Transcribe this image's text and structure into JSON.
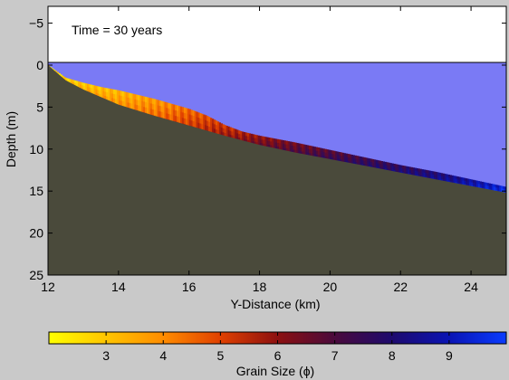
{
  "chart_data": [
    {
      "type": "area",
      "annotation": "Time = 30 years",
      "xlabel": "Y-Distance (km)",
      "ylabel": "Depth (m)",
      "xlim": [
        12,
        25
      ],
      "ylim": [
        -7,
        25
      ],
      "y_reversed": true,
      "xticks": [
        12,
        14,
        16,
        18,
        20,
        22,
        24
      ],
      "yticks": [
        -5,
        0,
        5,
        10,
        15,
        20,
        25
      ],
      "ytick_labels": [
        "−5",
        "0",
        "5",
        "10",
        "15",
        "20",
        "25"
      ],
      "grid": false,
      "water_level": 0,
      "colors": {
        "water": "#7a7af5",
        "bedrock": "#4a4a3b",
        "air": "#ffffff",
        "figure_background": "#c9c9c9"
      },
      "bedrock_surface": {
        "x": [
          12,
          12.5,
          13,
          14,
          15,
          16,
          17,
          18,
          19,
          20,
          21,
          22,
          23,
          24,
          25
        ],
        "depth": [
          0,
          1.8,
          2.9,
          4.7,
          6.0,
          7.2,
          8.4,
          9.5,
          10.4,
          11.2,
          12.0,
          12.8,
          13.6,
          14.4,
          15.2
        ]
      },
      "sediment_top": {
        "x": [
          12,
          12.5,
          13,
          13.5,
          14,
          14.5,
          15,
          15.5,
          16,
          16.5,
          17,
          17.5,
          18,
          19,
          20,
          21,
          22,
          23,
          24,
          25
        ],
        "depth": [
          0,
          1.5,
          2.1,
          2.6,
          3.0,
          3.5,
          4.0,
          4.6,
          5.2,
          6.0,
          7.1,
          7.9,
          8.4,
          9.2,
          10.1,
          11.0,
          11.9,
          12.7,
          13.6,
          14.5
        ]
      },
      "grain_size_along_x": {
        "x": [
          12,
          13,
          14,
          15,
          16,
          17,
          18,
          19,
          20,
          21,
          22,
          23,
          24,
          25
        ],
        "phi": [
          2.6,
          3.0,
          3.3,
          3.8,
          4.5,
          5.3,
          6.0,
          6.5,
          6.9,
          7.3,
          7.6,
          8.0,
          8.6,
          9.4
        ]
      }
    },
    {
      "type": "heatmap",
      "role": "colorbar",
      "xlabel": "Grain Size (ϕ)",
      "range": [
        2,
        10
      ],
      "ticks": [
        3,
        4,
        5,
        6,
        7,
        8,
        9
      ],
      "colormap_stops": [
        {
          "value": 2,
          "color": "#ffff00"
        },
        {
          "value": 4,
          "color": "#ff8c00"
        },
        {
          "value": 5,
          "color": "#e04000"
        },
        {
          "value": 6,
          "color": "#8c1010"
        },
        {
          "value": 7,
          "color": "#4a0a3c"
        },
        {
          "value": 8,
          "color": "#1e0a6e"
        },
        {
          "value": 9,
          "color": "#0a14b4"
        },
        {
          "value": 10,
          "color": "#0a3cff"
        }
      ]
    }
  ]
}
